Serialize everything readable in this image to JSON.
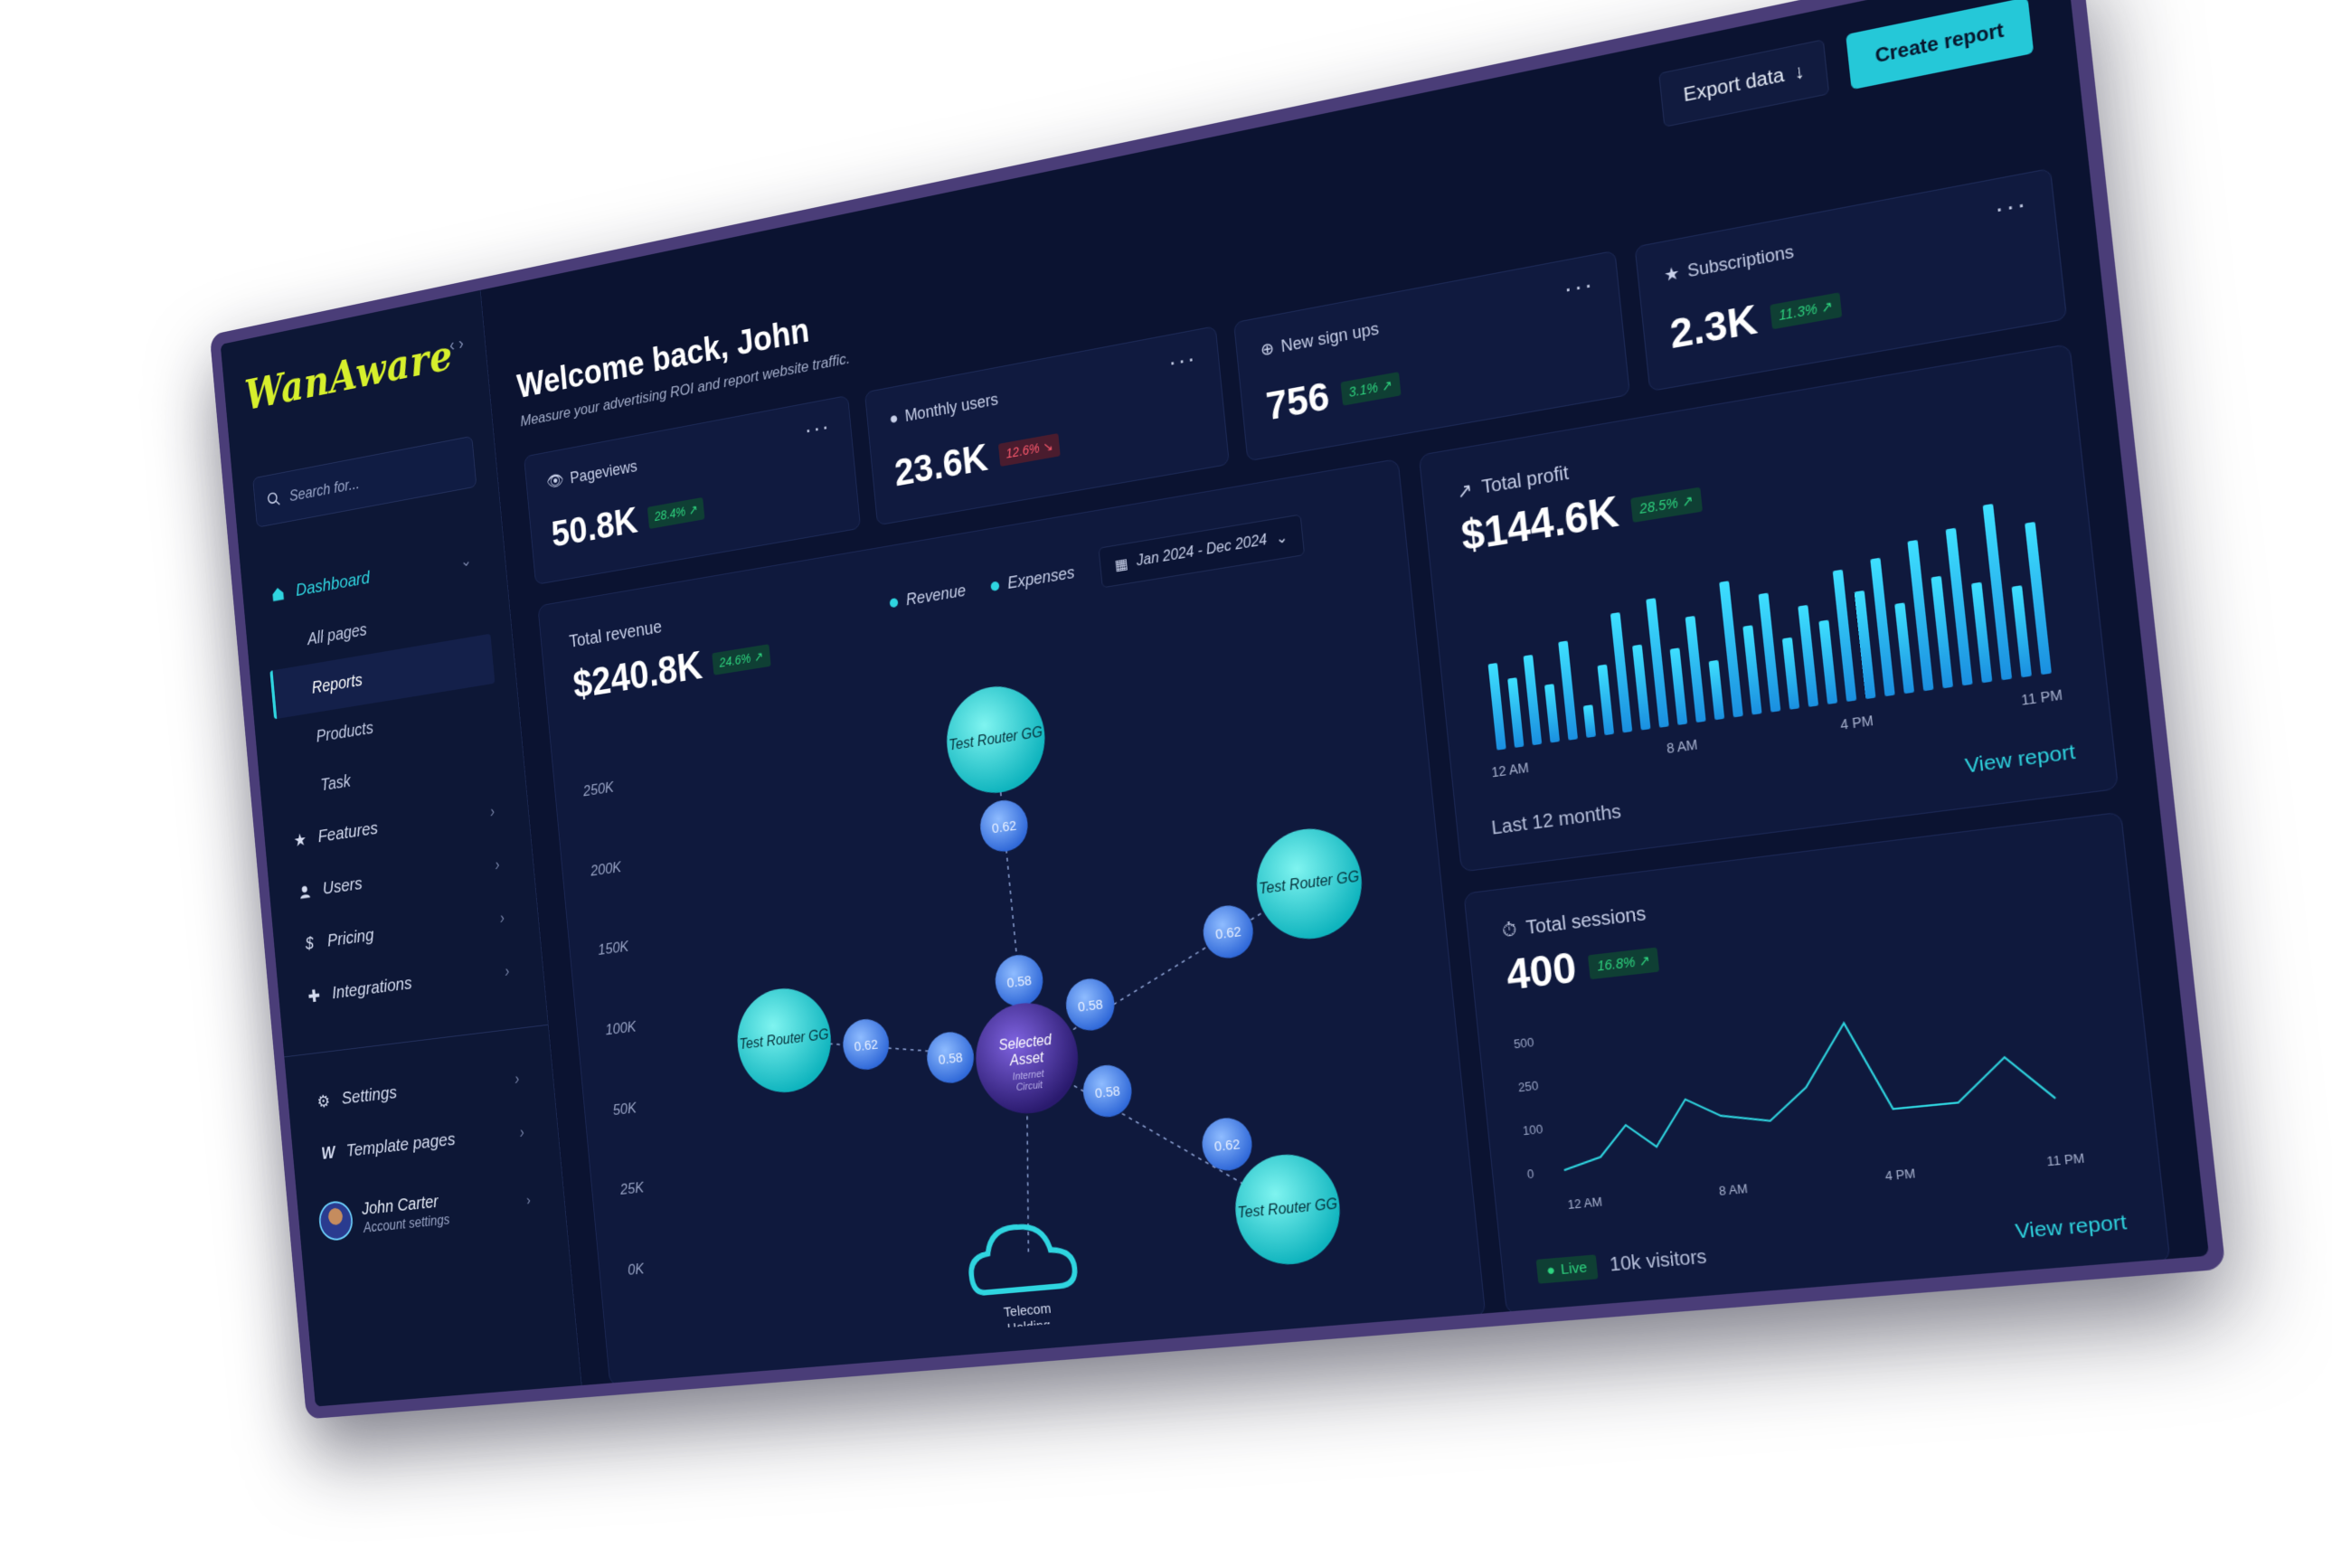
{
  "app": {
    "logo": "WanAware"
  },
  "sidebar": {
    "search_placeholder": "Search for...",
    "dashboard_label": "Dashboard",
    "sub_items": [
      "All pages",
      "Reports",
      "Products",
      "Task"
    ],
    "items": [
      {
        "label": "Features",
        "icon": "star-icon"
      },
      {
        "label": "Users",
        "icon": "user-icon"
      },
      {
        "label": "Pricing",
        "icon": "dollar-icon"
      },
      {
        "label": "Integrations",
        "icon": "puzzle-icon"
      }
    ],
    "settings_label": "Settings",
    "template_label": "Template pages",
    "user": {
      "name": "John Carter",
      "subtitle": "Account settings"
    }
  },
  "header": {
    "title": "Welcome back, John",
    "subtitle": "Measure your advertising ROI and report website traffic.",
    "export_label": "Export data",
    "create_label": "Create report"
  },
  "stats": [
    {
      "label": "Pageviews",
      "icon": "eye-icon",
      "value": "50.8K",
      "change": "28.4%",
      "direction": "up"
    },
    {
      "label": "Monthly users",
      "icon": "user-icon",
      "value": "23.6K",
      "change": "12.6%",
      "direction": "down"
    },
    {
      "label": "New sign ups",
      "icon": "plus-circle-icon",
      "value": "756",
      "change": "3.1%",
      "direction": "up"
    },
    {
      "label": "Subscriptions",
      "icon": "star-icon",
      "value": "2.3K",
      "change": "11.3%",
      "direction": "up"
    }
  ],
  "revenue": {
    "title": "Total revenue",
    "value": "$240.8K",
    "change": "24.6%",
    "legend": [
      "Revenue",
      "Expenses"
    ],
    "date_range": "Jan 2024 - Dec 2024",
    "y_ticks": [
      "250K",
      "200K",
      "150K",
      "100K",
      "50K",
      "25K",
      "0K"
    ],
    "network": {
      "center": {
        "line1": "Selected",
        "line2": "Asset",
        "line3": "Internet",
        "line4": "Circuit"
      },
      "routers": [
        "Test Router GG",
        "Test Router GG",
        "Test Router GG",
        "Test Router GG"
      ],
      "links": [
        "0.62",
        "0.58",
        "0.62",
        "0.58",
        "0.62",
        "0.58",
        "0.62",
        "0.58"
      ],
      "cloud_label_1": "Telecom",
      "cloud_label_2": "Holding"
    }
  },
  "profit": {
    "title": "Total profit",
    "value": "$144.6K",
    "change": "28.5%",
    "x_ticks": [
      "12 AM",
      "8 AM",
      "4 PM",
      "11 PM"
    ],
    "footer": "Last 12 months",
    "link": "View report"
  },
  "sessions": {
    "title": "Total sessions",
    "value": "400",
    "change": "16.8%",
    "y_ticks": [
      "500",
      "250",
      "100",
      "0"
    ],
    "x_ticks": [
      "12 AM",
      "8 AM",
      "4 PM",
      "11 PM"
    ],
    "live_label": "Live",
    "visitors": "10k visitors",
    "link": "View report"
  },
  "colors": {
    "accent": "#2fd5e0",
    "logo": "#d6ef2c",
    "up": "#2ed47f",
    "down": "#ff5a6e",
    "background": "#0b1331"
  }
}
